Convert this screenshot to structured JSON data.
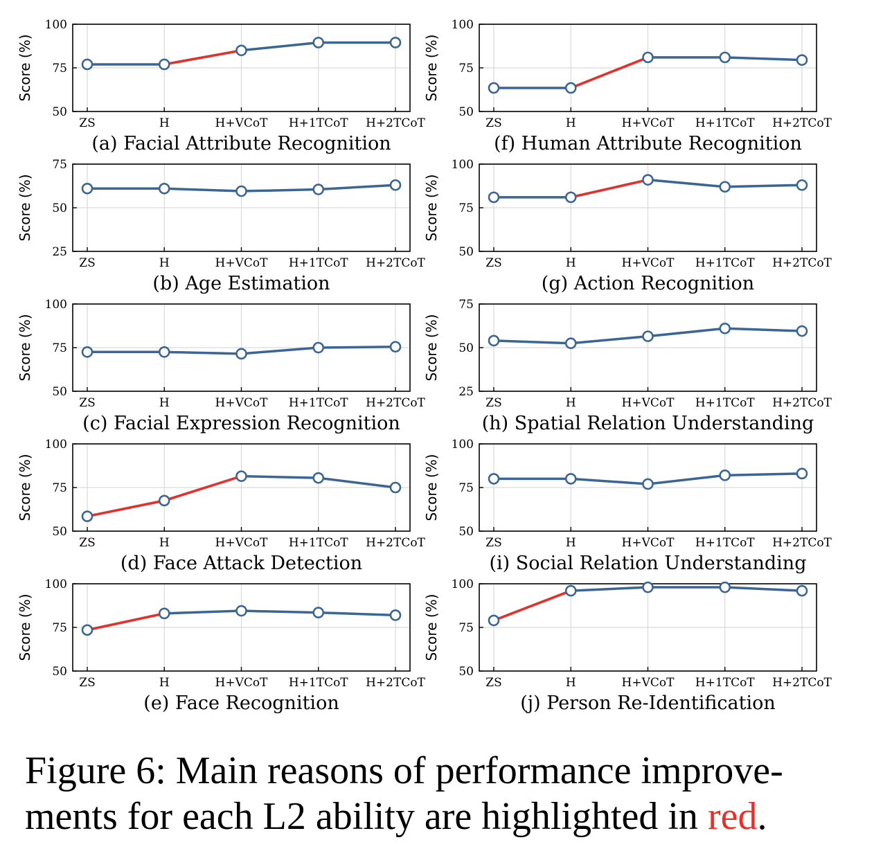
{
  "figure": {
    "caption_lines": [
      "Figure 6: Main reasons of performance improve-",
      "ments for each L2 ability are highlighted in"
    ],
    "caption_highlight": "red",
    "caption_end": ".",
    "ylabel": "Score (%)",
    "colors": {
      "series": "#3b6593",
      "highlight": "#e8302a",
      "grid": "#d9d9d9"
    }
  },
  "chart_data": [
    {
      "id": "a",
      "type": "line",
      "title": "(a) Facial Attribute Recognition",
      "ylabel": "Score (%)",
      "categories": [
        "ZS",
        "H",
        "H+VCoT",
        "H+1TCoT",
        "H+2TCoT"
      ],
      "values": [
        77,
        77,
        85,
        89.5,
        89.5
      ],
      "highlight_segment": [
        1,
        2
      ],
      "ylim": [
        50,
        100
      ],
      "yticks": [
        50,
        75,
        100
      ],
      "grid": true
    },
    {
      "id": "f",
      "type": "line",
      "title": "(f) Human Attribute Recognition",
      "ylabel": "Score (%)",
      "categories": [
        "ZS",
        "H",
        "H+VCoT",
        "H+1TCoT",
        "H+2TCoT"
      ],
      "values": [
        63.5,
        63.5,
        81,
        81,
        79.5
      ],
      "highlight_segment": [
        1,
        2
      ],
      "ylim": [
        50,
        100
      ],
      "yticks": [
        50,
        75,
        100
      ],
      "grid": true
    },
    {
      "id": "b",
      "type": "line",
      "title": "(b) Age Estimation",
      "ylabel": "Score (%)",
      "categories": [
        "ZS",
        "H",
        "H+VCoT",
        "H+1TCoT",
        "H+2TCoT"
      ],
      "values": [
        61,
        61,
        59.5,
        60.5,
        63
      ],
      "highlight_segment": null,
      "ylim": [
        25,
        75
      ],
      "yticks": [
        25,
        50,
        75
      ],
      "grid": true
    },
    {
      "id": "g",
      "type": "line",
      "title": "(g) Action Recognition",
      "ylabel": "Score (%)",
      "categories": [
        "ZS",
        "H",
        "H+VCoT",
        "H+1TCoT",
        "H+2TCoT"
      ],
      "values": [
        81,
        81,
        91,
        87,
        88
      ],
      "highlight_segment": [
        1,
        2
      ],
      "ylim": [
        50,
        100
      ],
      "yticks": [
        50,
        75,
        100
      ],
      "grid": true
    },
    {
      "id": "c",
      "type": "line",
      "title": "(c) Facial Expression Recognition",
      "ylabel": "Score (%)",
      "categories": [
        "ZS",
        "H",
        "H+VCoT",
        "H+1TCoT",
        "H+2TCoT"
      ],
      "values": [
        72.5,
        72.5,
        71.5,
        75,
        75.5
      ],
      "highlight_segment": null,
      "ylim": [
        50,
        100
      ],
      "yticks": [
        50,
        75,
        100
      ],
      "grid": true
    },
    {
      "id": "h",
      "type": "line",
      "title": "(h) Spatial Relation Understanding",
      "ylabel": "Score (%)",
      "categories": [
        "ZS",
        "H",
        "H+VCoT",
        "H+1TCoT",
        "H+2TCoT"
      ],
      "values": [
        54,
        52.5,
        56.5,
        61,
        59.5
      ],
      "highlight_segment": null,
      "ylim": [
        25,
        75
      ],
      "yticks": [
        25,
        50,
        75
      ],
      "grid": true
    },
    {
      "id": "d",
      "type": "line",
      "title": "(d) Face Attack Detection",
      "ylabel": "Score (%)",
      "categories": [
        "ZS",
        "H",
        "H+VCoT",
        "H+1TCoT",
        "H+2TCoT"
      ],
      "values": [
        58.5,
        67.5,
        81.5,
        80.5,
        75
      ],
      "highlight_segment": [
        0,
        2
      ],
      "ylim": [
        50,
        100
      ],
      "yticks": [
        50,
        75,
        100
      ],
      "grid": true
    },
    {
      "id": "i",
      "type": "line",
      "title": "(i) Social Relation Understanding",
      "ylabel": "Score (%)",
      "categories": [
        "ZS",
        "H",
        "H+VCoT",
        "H+1TCoT",
        "H+2TCoT"
      ],
      "values": [
        80,
        80,
        77,
        82,
        83
      ],
      "highlight_segment": null,
      "ylim": [
        50,
        100
      ],
      "yticks": [
        50,
        75,
        100
      ],
      "grid": true
    },
    {
      "id": "e",
      "type": "line",
      "title": "(e) Face Recognition",
      "ylabel": "Score (%)",
      "categories": [
        "ZS",
        "H",
        "H+VCoT",
        "H+1TCoT",
        "H+2TCoT"
      ],
      "values": [
        73.5,
        83,
        84.5,
        83.5,
        82
      ],
      "highlight_segment": [
        0,
        1
      ],
      "ylim": [
        50,
        100
      ],
      "yticks": [
        50,
        75,
        100
      ],
      "grid": true
    },
    {
      "id": "j",
      "type": "line",
      "title": "(j) Person Re-Identification",
      "ylabel": "Score (%)",
      "categories": [
        "ZS",
        "H",
        "H+VCoT",
        "H+1TCoT",
        "H+2TCoT"
      ],
      "values": [
        79,
        96,
        98,
        98,
        96
      ],
      "highlight_segment": [
        0,
        1
      ],
      "ylim": [
        50,
        100
      ],
      "yticks": [
        50,
        75,
        100
      ],
      "grid": true
    }
  ]
}
